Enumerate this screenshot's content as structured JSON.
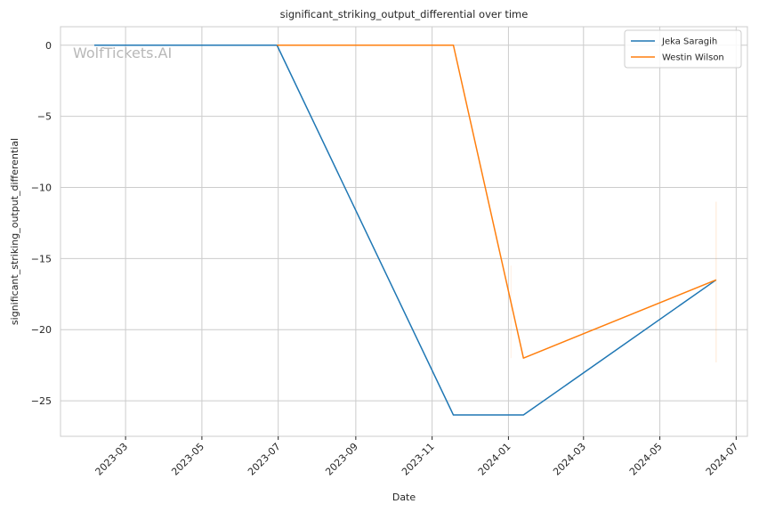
{
  "chart_data": {
    "type": "line",
    "title": "significant_striking_output_differential over time",
    "xlabel": "Date",
    "ylabel": "significant_striking_output_differential",
    "watermark": "WolfTickets.AI",
    "x_axis": "date",
    "xlim": [
      "2023-01-08",
      "2024-07-10"
    ],
    "ylim": [
      -27.5,
      1.3
    ],
    "xticks": [
      "2023-03",
      "2023-05",
      "2023-07",
      "2023-09",
      "2023-11",
      "2024-01",
      "2024-03",
      "2024-05",
      "2024-07"
    ],
    "xtick_dates": [
      "2023-03-01",
      "2023-05-01",
      "2023-07-01",
      "2023-09-01",
      "2023-11-01",
      "2024-01-01",
      "2024-03-01",
      "2024-05-01",
      "2024-07-01"
    ],
    "yticks": [
      0,
      -5,
      -10,
      -15,
      -20,
      -25
    ],
    "ytick_labels": [
      "0",
      "−5",
      "−10",
      "−15",
      "−20",
      "−25"
    ],
    "grid": true,
    "legend_position": "top-right",
    "series": [
      {
        "name": "Jeka Saragih",
        "color": "#1f77b4",
        "points": [
          {
            "x": "2023-02-04",
            "y": 0
          },
          {
            "x": "2023-06-30",
            "y": 0
          },
          {
            "x": "2023-11-18",
            "y": -26
          },
          {
            "x": "2024-01-13",
            "y": -26
          },
          {
            "x": "2024-06-15",
            "y": -16.5
          }
        ]
      },
      {
        "name": "Westin Wilson",
        "color": "#ff7f0e",
        "points": [
          {
            "x": "2023-06-30",
            "y": 0
          },
          {
            "x": "2023-11-18",
            "y": 0
          },
          {
            "x": "2024-01-13",
            "y": -22
          },
          {
            "x": "2024-06-15",
            "y": -16.5
          }
        ]
      }
    ]
  }
}
